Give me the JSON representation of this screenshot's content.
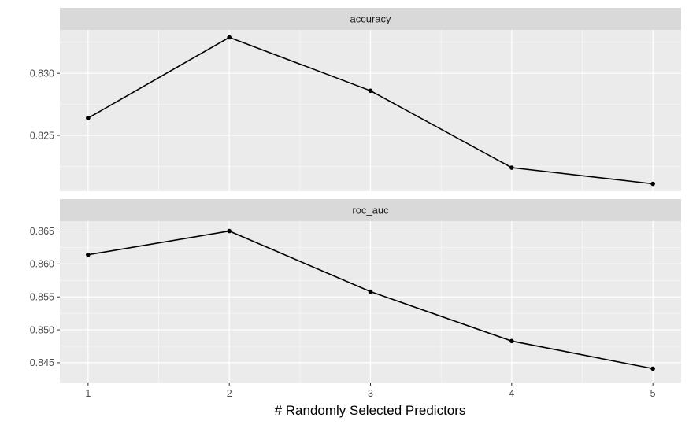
{
  "chart_data": {
    "type": "line",
    "xlabel": "# Randomly Selected Predictors",
    "x": [
      1,
      2,
      3,
      4,
      5
    ],
    "x_ticks": [
      "1",
      "2",
      "3",
      "4",
      "5"
    ],
    "xlim": [
      0.8,
      5.2
    ],
    "panels": [
      {
        "name": "accuracy",
        "values": [
          0.8264,
          0.8329,
          0.8286,
          0.8224,
          0.8211
        ],
        "ylim": [
          0.8205,
          0.8335
        ],
        "y_ticks": [
          "0.825",
          "0.830"
        ],
        "y_tick_values": [
          0.825,
          0.83
        ]
      },
      {
        "name": "roc_auc",
        "values": [
          0.8614,
          0.865,
          0.8558,
          0.8483,
          0.8441
        ],
        "ylim": [
          0.842,
          0.8665
        ],
        "y_ticks": [
          "0.845",
          "0.850",
          "0.855",
          "0.860",
          "0.865"
        ],
        "y_tick_values": [
          0.845,
          0.85,
          0.855,
          0.86,
          0.865
        ]
      }
    ],
    "grid": true,
    "legend": "none"
  },
  "colors": {
    "panel_bg": "#ebebeb",
    "strip_bg": "#d9d9d9",
    "grid_major": "#ffffff",
    "line": "#000000"
  }
}
